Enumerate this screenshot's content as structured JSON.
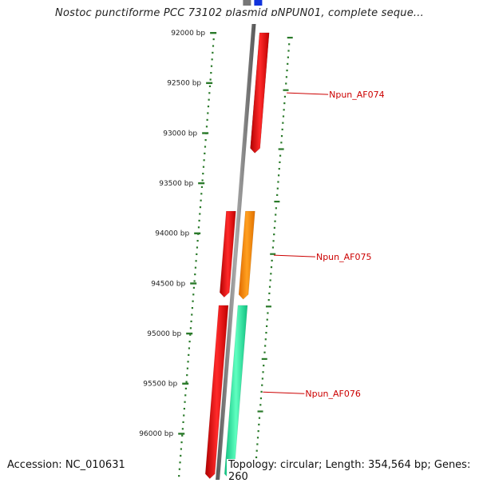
{
  "title": "Nostoc punctiforme PCC 73102 plasmid pNPUN01, complete seque...",
  "footer": {
    "accession": "Accession: NC_010631",
    "topology": "Topology: circular; Length: 354,564 bp; Genes: 260"
  },
  "ruler": {
    "unit": "bp",
    "ticks": [
      "92000 bp",
      "92500 bp",
      "93000 bp",
      "93500 bp",
      "94000 bp",
      "94500 bp",
      "95000 bp",
      "95500 bp",
      "96000 bp"
    ]
  },
  "genes": [
    {
      "name": "",
      "start": 92000,
      "end": 93200,
      "track": "outer",
      "color": "#ee1111"
    },
    {
      "name": "Npun_AF074",
      "start": 92000,
      "end": 93200,
      "track": "outer",
      "color": "#ee1111"
    },
    {
      "name": "",
      "start": 93780,
      "end": 94640,
      "track": "inner",
      "color": "#ee1111"
    },
    {
      "name": "Npun_AF075",
      "start": 93780,
      "end": 94660,
      "track": "outer",
      "color": "#ff8c00"
    },
    {
      "name": "",
      "start": 94720,
      "end": 96450,
      "track": "inner",
      "color": "#ee1111"
    },
    {
      "name": "Npun_AF076",
      "start": 94720,
      "end": 96450,
      "track": "outer",
      "color": "#22ee99"
    }
  ],
  "colors": {
    "backbone": "#777777",
    "gc_dots": "#2a7a2a",
    "label": "#cc0000",
    "blue_feature": "#1133dd"
  }
}
